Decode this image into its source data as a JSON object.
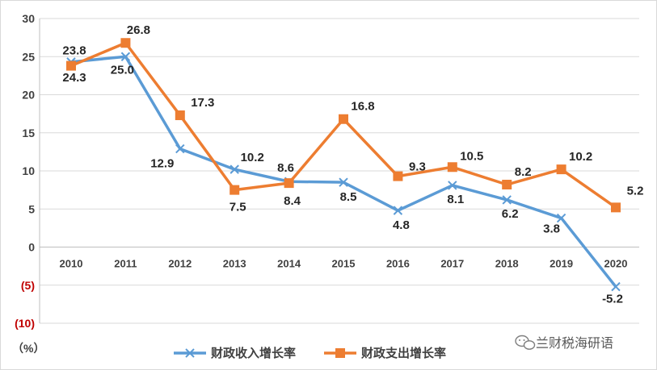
{
  "chart_data": {
    "type": "line",
    "categories": [
      "2010",
      "2011",
      "2012",
      "2013",
      "2014",
      "2015",
      "2016",
      "2017",
      "2018",
      "2019",
      "2020"
    ],
    "series": [
      {
        "name": "财政收入增长率",
        "values": [
          24.3,
          25.0,
          12.9,
          10.2,
          8.6,
          8.5,
          4.8,
          8.1,
          6.2,
          3.8,
          -5.2
        ],
        "color": "#5b9bd5",
        "marker": "x"
      },
      {
        "name": "财政支出增长率",
        "values": [
          23.8,
          26.8,
          17.3,
          7.5,
          8.4,
          16.8,
          9.3,
          10.5,
          8.2,
          10.2,
          5.2
        ],
        "color": "#ed7d31",
        "marker": "square"
      }
    ],
    "y_ticks": [
      "30",
      "25",
      "20",
      "15",
      "10",
      "5",
      "0",
      "(5)",
      "(10)"
    ],
    "ylim": [
      -10,
      30
    ],
    "unit_label": "（%）",
    "grid": true,
    "legend_position": "bottom"
  },
  "watermark": {
    "text": "兰财税海研语",
    "icon": "wechat-icon"
  }
}
